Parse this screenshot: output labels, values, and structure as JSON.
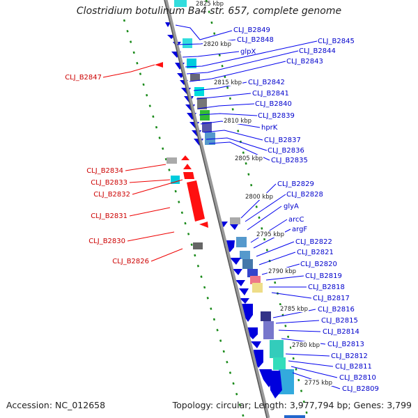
{
  "header": {
    "title": "Clostridium botulinum Ba4 str. 657, complete genome",
    "top_tick_partial": "2825 kbp"
  },
  "footer": {
    "accession": "Accession: NC_012658",
    "summary": "Topology: circular; Length: 3,977,794 bp; Genes: 3,799"
  },
  "colors": {
    "forward_strand": "#e00000",
    "reverse_strand": "#0000dd",
    "backbone": "#888888",
    "dotted_guides": "#1a8a1a",
    "forward_label": "#cc0000",
    "reverse_label": "#0000cc"
  },
  "ticks": [
    "2820 kbp",
    "2815 kbp",
    "2810 kbp",
    "2805 kbp",
    "2800 kbp",
    "2795 kbp",
    "2790 kbp",
    "2785 kbp",
    "2780 kbp",
    "2775 kbp"
  ],
  "reverse_labels": [
    "CLJ_B2849",
    "CLJ_B2848",
    "glpX",
    "CLJ_B2845",
    "CLJ_B2844",
    "CLJ_B2843",
    "CLJ_B2842",
    "CLJ_B2841",
    "CLJ_B2840",
    "CLJ_B2839",
    "hprK",
    "CLJ_B2837",
    "CLJ_B2836",
    "CLJ_B2835",
    "CLJ_B2829",
    "CLJ_B2828",
    "glyA",
    "arcC",
    "argF",
    "CLJ_B2822",
    "CLJ_B2821",
    "CLJ_B2820",
    "CLJ_B2819",
    "CLJ_B2818",
    "CLJ_B2817",
    "CLJ_B2816",
    "CLJ_B2815",
    "CLJ_B2814",
    "CLJ_B2813",
    "CLJ_B2812",
    "CLJ_B2811",
    "CLJ_B2810",
    "CLJ_B2809"
  ],
  "forward_labels": [
    "CLJ_B2847",
    "CLJ_B2834",
    "CLJ_B2833",
    "CLJ_B2832",
    "CLJ_B2831",
    "CLJ_B2830",
    "CLJ_B2826"
  ]
}
